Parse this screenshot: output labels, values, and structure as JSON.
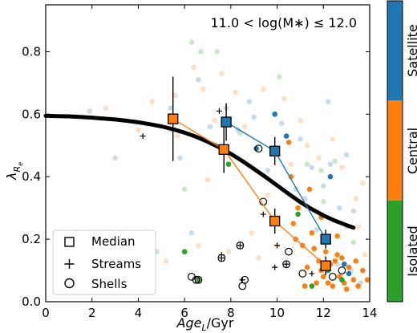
{
  "chart_data": {
    "type": "scatter",
    "xlabel": "Age_L/Gyr",
    "ylabel": "λ_Re",
    "xlim": [
      0,
      14
    ],
    "ylim": [
      0,
      0.95
    ],
    "x_ticks": [
      "0",
      "2",
      "4",
      "6",
      "8",
      "10",
      "12",
      "14"
    ],
    "y_ticks": [
      "0.0",
      "0.2",
      "0.4",
      "0.6",
      "0.8"
    ],
    "x_tick_values": [
      0,
      2,
      4,
      6,
      8,
      10,
      12,
      14
    ],
    "y_tick_values": [
      0.0,
      0.2,
      0.4,
      0.6,
      0.8
    ],
    "annotation": "11.0 < log(M∗) ≤ 12.0",
    "legend": {
      "placement": "lower-left",
      "entries": [
        {
          "marker": "square",
          "label": "Median"
        },
        {
          "marker": "plus",
          "label": "Streams"
        },
        {
          "marker": "circle",
          "label": "Shells"
        }
      ]
    },
    "colorbar": {
      "segments": [
        {
          "label": "Satellite",
          "color": "#1f77b4"
        },
        {
          "label": "Central",
          "color": "#ff7f0e"
        },
        {
          "label": "Isolated",
          "color": "#2ca02c"
        }
      ]
    },
    "colors": {
      "satellite": "#1f77b4",
      "central": "#ff7f0e",
      "isolated": "#2ca02c"
    },
    "trend_curve": {
      "x": [
        0,
        0.5,
        1,
        1.5,
        2,
        2.5,
        3,
        3.5,
        4,
        4.5,
        5,
        5.5,
        6,
        6.5,
        7,
        7.5,
        8,
        8.5,
        9,
        9.5,
        10,
        10.5,
        11,
        11.5,
        12,
        12.5,
        13,
        13.3
      ],
      "y": [
        0.595,
        0.594,
        0.593,
        0.591,
        0.589,
        0.586,
        0.583,
        0.579,
        0.574,
        0.568,
        0.561,
        0.552,
        0.541,
        0.528,
        0.512,
        0.494,
        0.473,
        0.45,
        0.425,
        0.399,
        0.372,
        0.345,
        0.319,
        0.296,
        0.276,
        0.259,
        0.245,
        0.237
      ]
    },
    "medians": [
      {
        "group": "central",
        "x": [
          5.5,
          7.7,
          9.9,
          12.1
        ],
        "y": [
          0.585,
          0.487,
          0.258,
          0.115
        ],
        "err": [
          0.135,
          0.075,
          0.04,
          0.03
        ]
      },
      {
        "group": "satellite",
        "x": [
          7.8,
          9.9,
          12.1
        ],
        "y": [
          0.575,
          0.482,
          0.2
        ],
        "err": [
          0.06,
          0.045,
          0.03
        ]
      }
    ],
    "points": {
      "satellite_faded": [
        [
          3.0,
          0.46
        ],
        [
          5.4,
          0.62
        ],
        [
          5.8,
          0.46
        ],
        [
          6.6,
          0.71
        ],
        [
          7.1,
          0.56
        ],
        [
          7.8,
          0.62
        ],
        [
          8.3,
          0.55
        ],
        [
          9.0,
          0.59
        ],
        [
          9.6,
          0.42
        ],
        [
          10.2,
          0.57
        ],
        [
          10.8,
          0.36
        ],
        [
          11.2,
          0.33
        ],
        [
          11.5,
          0.43
        ],
        [
          12.0,
          0.37
        ],
        [
          12.3,
          0.44
        ],
        [
          12.7,
          0.3
        ],
        [
          13.0,
          0.47
        ],
        [
          13.3,
          0.29
        ],
        [
          11.7,
          0.23
        ],
        [
          12.6,
          0.12
        ],
        [
          13.2,
          0.1
        ],
        [
          13.6,
          0.06
        ],
        [
          11.0,
          0.52
        ],
        [
          6.3,
          0.22
        ],
        [
          4.8,
          0.16
        ],
        [
          8.8,
          0.64
        ],
        [
          12.2,
          0.64
        ]
      ],
      "satellite": [
        [
          9.9,
          0.6
        ],
        [
          10.4,
          0.53
        ],
        [
          9.1,
          0.49
        ],
        [
          12.3,
          0.4
        ],
        [
          12.9,
          0.12
        ],
        [
          13.1,
          0.09
        ]
      ],
      "central_faded": [
        [
          2.6,
          0.62
        ],
        [
          4.0,
          0.55
        ],
        [
          4.6,
          0.64
        ],
        [
          5.6,
          0.66
        ],
        [
          5.7,
          0.53
        ],
        [
          6.4,
          0.75
        ],
        [
          6.8,
          0.68
        ],
        [
          7.3,
          0.58
        ],
        [
          7.6,
          0.73
        ],
        [
          8.2,
          0.67
        ],
        [
          8.6,
          0.56
        ],
        [
          9.4,
          0.68
        ],
        [
          9.6,
          0.34
        ],
        [
          10.3,
          0.65
        ],
        [
          11.0,
          0.58
        ],
        [
          11.3,
          0.5
        ],
        [
          11.8,
          0.46
        ],
        [
          12.4,
          0.52
        ],
        [
          12.8,
          0.43
        ],
        [
          13.4,
          0.33
        ],
        [
          13.7,
          0.38
        ],
        [
          7.0,
          0.39
        ],
        [
          8.9,
          0.22
        ],
        [
          10.6,
          0.44
        ],
        [
          12.5,
          0.26
        ],
        [
          6.6,
          0.18
        ],
        [
          7.9,
          0.16
        ],
        [
          9.2,
          0.14
        ],
        [
          10.0,
          0.18
        ],
        [
          13.8,
          0.15
        ],
        [
          13.5,
          0.24
        ],
        [
          5.2,
          0.13
        ]
      ],
      "central": [
        [
          10.6,
          0.4
        ],
        [
          10.9,
          0.3
        ],
        [
          11.4,
          0.36
        ],
        [
          10.5,
          0.51
        ],
        [
          11.6,
          0.17
        ],
        [
          11.8,
          0.13
        ],
        [
          11.9,
          0.1
        ],
        [
          12.0,
          0.08
        ],
        [
          12.2,
          0.06
        ],
        [
          12.4,
          0.05
        ],
        [
          12.5,
          0.13
        ],
        [
          12.7,
          0.08
        ],
        [
          12.9,
          0.06
        ],
        [
          13.1,
          0.11
        ],
        [
          13.3,
          0.07
        ],
        [
          13.5,
          0.05
        ],
        [
          13.7,
          0.1
        ],
        [
          13.9,
          0.07
        ],
        [
          11.2,
          0.05
        ],
        [
          11.5,
          0.22
        ],
        [
          10.8,
          0.2
        ],
        [
          11.1,
          0.18
        ],
        [
          11.7,
          0.06
        ],
        [
          12.1,
          0.16
        ],
        [
          12.3,
          0.12
        ],
        [
          12.6,
          0.15
        ],
        [
          12.8,
          0.14
        ],
        [
          13.0,
          0.04
        ],
        [
          13.4,
          0.13
        ],
        [
          11.3,
          0.11
        ],
        [
          10.7,
          0.25
        ],
        [
          9.8,
          0.25
        ],
        [
          11.9,
          0.27
        ],
        [
          12.6,
          0.21
        ]
      ],
      "isolated_faded": [
        [
          1.9,
          0.61
        ],
        [
          5.4,
          0.55
        ],
        [
          6.3,
          0.83
        ],
        [
          6.7,
          0.8
        ],
        [
          7.4,
          0.8
        ],
        [
          8.4,
          0.54
        ],
        [
          10.1,
          0.72
        ],
        [
          11.3,
          0.44
        ],
        [
          12.0,
          0.32
        ],
        [
          12.5,
          0.45
        ],
        [
          13.0,
          0.24
        ],
        [
          13.3,
          0.19
        ],
        [
          6.0,
          0.36
        ],
        [
          11.9,
          0.42
        ]
      ],
      "isolated": [
        [
          6.0,
          0.16
        ],
        [
          7.9,
          0.44
        ],
        [
          10.9,
          0.28
        ],
        [
          11.5,
          0.05
        ],
        [
          12.2,
          0.1
        ],
        [
          12.8,
          0.07
        ],
        [
          6.6,
          0.07
        ]
      ],
      "streams": [
        [
          4.2,
          0.53
        ],
        [
          7.5,
          0.61
        ],
        [
          7.6,
          0.15
        ],
        [
          7.6,
          0.14
        ],
        [
          8.4,
          0.18
        ],
        [
          8.5,
          0.07
        ],
        [
          9.4,
          0.28
        ],
        [
          9.9,
          0.11
        ],
        [
          10.0,
          0.18
        ],
        [
          10.4,
          0.12
        ],
        [
          11.5,
          0.09
        ],
        [
          12.1,
          0.11
        ]
      ],
      "shells": [
        [
          6.3,
          0.08
        ],
        [
          6.5,
          0.07
        ],
        [
          7.6,
          0.14
        ],
        [
          8.5,
          0.05
        ],
        [
          8.6,
          0.07
        ],
        [
          9.4,
          0.32
        ],
        [
          10.4,
          0.12
        ],
        [
          10.5,
          0.16
        ],
        [
          11.1,
          0.09
        ],
        [
          12.4,
          0.08
        ],
        [
          12.8,
          0.1
        ],
        [
          9.2,
          0.49
        ],
        [
          8.4,
          0.18
        ],
        [
          6.6,
          0.07
        ]
      ]
    }
  }
}
